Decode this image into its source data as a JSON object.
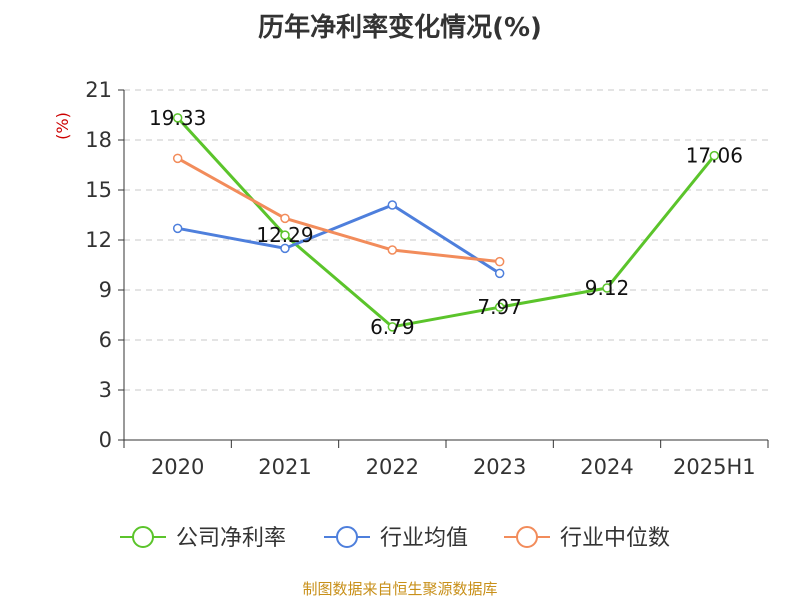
{
  "chart_data": {
    "type": "line",
    "title": "历年净利率变化情况(%)",
    "ylabel": "(%)",
    "xlabel": "",
    "categories": [
      "2020",
      "2021",
      "2022",
      "2023",
      "2024",
      "2025H1"
    ],
    "ylim": [
      0,
      21
    ],
    "yticks": [
      0,
      3,
      6,
      9,
      12,
      15,
      18,
      21
    ],
    "grid": true,
    "legend_position": "bottom",
    "series": [
      {
        "name": "公司净利率",
        "color": "#5bc42b",
        "values": [
          19.33,
          12.29,
          6.79,
          7.97,
          9.12,
          17.06
        ],
        "show_labels": true
      },
      {
        "name": "行业均值",
        "color": "#4e7fdc",
        "values": [
          12.7,
          11.5,
          14.1,
          10.0,
          null,
          null
        ],
        "show_labels": false
      },
      {
        "name": "行业中位数",
        "color": "#f28c5b",
        "values": [
          16.9,
          13.3,
          11.4,
          10.7,
          null,
          null
        ],
        "show_labels": false
      }
    ]
  },
  "footer": {
    "source": "制图数据来自恒生聚源数据库"
  }
}
